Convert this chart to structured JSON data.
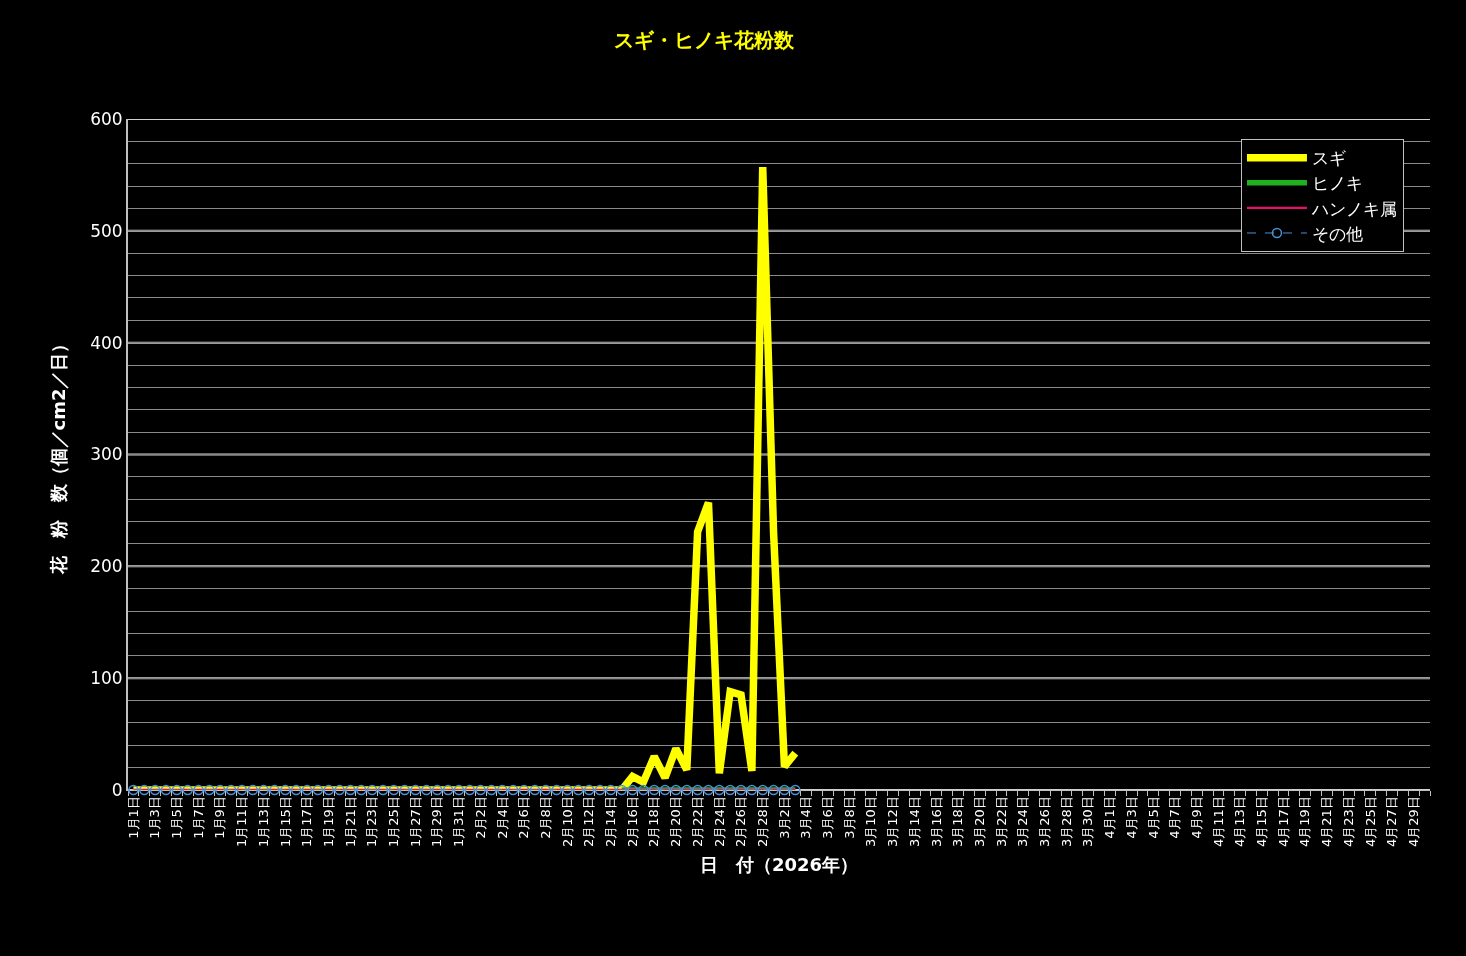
{
  "chart_data": {
    "type": "line",
    "title": "スギ・ヒノキ花粉数",
    "xlabel": "日　付（2026年）",
    "ylabel": "花　粉　数（個／cm2／日）",
    "categories": [
      "1月1日",
      null,
      "1月3日",
      null,
      "1月5日",
      null,
      "1月7日",
      null,
      "1月9日",
      null,
      "1月11日",
      null,
      "1月13日",
      null,
      "1月15日",
      null,
      "1月17日",
      null,
      "1月19日",
      null,
      "1月21日",
      null,
      "1月23日",
      null,
      "1月25日",
      null,
      "1月27日",
      null,
      "1月29日",
      null,
      "1月31日",
      null,
      "2月2日",
      null,
      "2月4日",
      null,
      "2月6日",
      null,
      "2月8日",
      null,
      "2月10日",
      null,
      "2月12日",
      null,
      "2月14日",
      null,
      "2月16日",
      null,
      "2月18日",
      null,
      "2月20日",
      null,
      "2月22日",
      null,
      "2月24日",
      null,
      "2月26日",
      null,
      "2月28日",
      null,
      "3月2日",
      null,
      "3月4日",
      null,
      "3月6日",
      null,
      "3月8日",
      null,
      "3月10日",
      null,
      "3月12日",
      null,
      "3月14日",
      null,
      "3月16日",
      null,
      "3月18日",
      null,
      "3月20日",
      null,
      "3月22日",
      null,
      "3月24日",
      null,
      "3月26日",
      null,
      "3月28日",
      null,
      "3月30日",
      null,
      "4月1日",
      null,
      "4月3日",
      null,
      "4月5日",
      null,
      "4月7日",
      null,
      "4月9日",
      null,
      "4月11日",
      null,
      "4月13日",
      null,
      "4月15日",
      null,
      "4月17日",
      null,
      "4月19日",
      null,
      "4月21日",
      null,
      "4月23日",
      null,
      "4月25日",
      null,
      "4月27日",
      null,
      "4月29日",
      null
    ],
    "series": [
      {
        "name": "スギ",
        "color": "#ffff00",
        "values": [
          0,
          0,
          0,
          0,
          0,
          0,
          0,
          0,
          0,
          0,
          0,
          0,
          0,
          0,
          0,
          0,
          0,
          0,
          0,
          0,
          0,
          0,
          0,
          0,
          0,
          0,
          0,
          0,
          0,
          0,
          0,
          0,
          0,
          0,
          0,
          0,
          0,
          0,
          0,
          0,
          0,
          0,
          0,
          0,
          0,
          0,
          12,
          7,
          30,
          11,
          37,
          18,
          231,
          257,
          15,
          88,
          85,
          17,
          557,
          230,
          21,
          33,
          null,
          null,
          null,
          null,
          null,
          null,
          null,
          null,
          null,
          null,
          null,
          null,
          null,
          null,
          null,
          null,
          null,
          null,
          null,
          null,
          null,
          null,
          null,
          null,
          null,
          null,
          null,
          null,
          null,
          null,
          null,
          null,
          null,
          null,
          null,
          null,
          null,
          null,
          null,
          null,
          null,
          null,
          null,
          null,
          null,
          null,
          null,
          null,
          null,
          null,
          null,
          null,
          null,
          null,
          null,
          null,
          null,
          null
        ]
      },
      {
        "name": "ヒノキ",
        "color": "#20b020",
        "values": [
          null,
          null,
          null,
          null,
          null,
          null,
          null,
          null,
          null,
          null,
          null,
          null,
          null,
          null,
          null,
          null,
          null,
          null,
          null,
          null,
          null,
          null,
          null,
          null,
          null,
          null,
          null,
          null,
          null,
          null,
          null,
          null,
          null,
          null,
          null,
          null,
          null,
          null,
          null,
          null,
          null,
          null,
          null,
          null,
          null,
          0,
          0,
          0,
          0,
          0,
          0,
          0,
          0,
          0,
          0,
          0,
          0,
          0,
          0,
          0,
          0,
          0,
          null,
          null,
          null,
          null,
          null,
          null,
          null,
          null,
          null,
          null,
          null,
          null,
          null,
          null,
          null,
          null,
          null,
          null,
          null,
          null,
          null,
          null,
          null,
          null,
          null,
          null,
          null,
          null,
          null,
          null,
          null,
          null,
          null,
          null,
          null,
          null,
          null,
          null,
          null,
          null,
          null,
          null,
          null,
          null,
          null,
          null,
          null,
          null,
          null,
          null,
          null,
          null,
          null,
          null,
          null,
          null,
          null,
          null
        ]
      },
      {
        "name": "ハンノキ属",
        "color": "#e8106e",
        "values": [
          0,
          0,
          0,
          0,
          0,
          0,
          0,
          0,
          0,
          0,
          0,
          0,
          0,
          0,
          0,
          0,
          0,
          0,
          0,
          0,
          0,
          0,
          0,
          0,
          0,
          0,
          0,
          0,
          0,
          0,
          0,
          0,
          0,
          0,
          0,
          0,
          0,
          0,
          0,
          0,
          0,
          0,
          0,
          0,
          0,
          0,
          0,
          0,
          0,
          0,
          0,
          0,
          0,
          0,
          0,
          0,
          0,
          0,
          0,
          0,
          0,
          0,
          null,
          null,
          null,
          null,
          null,
          null,
          null,
          null,
          null,
          null,
          null,
          null,
          null,
          null,
          null,
          null,
          null,
          null,
          null,
          null,
          null,
          null,
          null,
          null,
          null,
          null,
          null,
          null,
          null,
          null,
          null,
          null,
          null,
          null,
          null,
          null,
          null,
          null,
          null,
          null,
          null,
          null,
          null,
          null,
          null,
          null,
          null,
          null,
          null,
          null,
          null,
          null,
          null,
          null,
          null,
          null,
          null,
          null
        ]
      },
      {
        "name": "その他",
        "color": "#4a90d9",
        "marker": "circle",
        "line_style": "dashed",
        "values": [
          0,
          0,
          0,
          0,
          0,
          0,
          0,
          0,
          0,
          0,
          0,
          0,
          0,
          0,
          0,
          0,
          0,
          0,
          0,
          0,
          0,
          0,
          0,
          0,
          0,
          0,
          0,
          0,
          0,
          0,
          0,
          0,
          0,
          0,
          0,
          0,
          0,
          0,
          0,
          0,
          0,
          0,
          0,
          0,
          0,
          0,
          0,
          0,
          0,
          0,
          0,
          0,
          0,
          0,
          0,
          0,
          0,
          0,
          0,
          0,
          0,
          0,
          null,
          null,
          null,
          null,
          null,
          null,
          null,
          null,
          null,
          null,
          null,
          null,
          null,
          null,
          null,
          null,
          null,
          null,
          null,
          null,
          null,
          null,
          null,
          null,
          null,
          null,
          null,
          null,
          null,
          null,
          null,
          null,
          null,
          null,
          null,
          null,
          null,
          null,
          null,
          null,
          null,
          null,
          null,
          null,
          null,
          null,
          null,
          null,
          null,
          null,
          null,
          null,
          null,
          null,
          null,
          null,
          null,
          null
        ]
      }
    ],
    "ylim": [
      0,
      600
    ],
    "yticks": [
      0,
      {
        "value": 20,
        "label": null
      },
      {
        "value": 40,
        "label": null
      },
      {
        "value": 60,
        "label": null
      },
      {
        "value": 80,
        "label": null
      },
      100,
      {
        "value": 120,
        "label": null
      },
      {
        "value": 140,
        "label": null
      },
      {
        "value": 160,
        "label": null
      },
      {
        "value": 180,
        "label": null
      },
      200,
      {
        "value": 220,
        "label": null
      },
      {
        "value": 240,
        "label": null
      },
      {
        "value": 260,
        "label": null
      },
      {
        "value": 280,
        "label": null
      },
      300,
      {
        "value": 320,
        "label": null
      },
      {
        "value": 340,
        "label": null
      },
      {
        "value": 360,
        "label": null
      },
      {
        "value": 380,
        "label": null
      },
      400,
      {
        "value": 420,
        "label": null
      },
      {
        "value": 440,
        "label": null
      },
      {
        "value": 460,
        "label": null
      },
      {
        "value": 480,
        "label": null
      },
      500,
      {
        "value": 520,
        "label": null
      },
      {
        "value": 540,
        "label": null
      },
      {
        "value": 560,
        "label": null
      },
      {
        "value": 580,
        "label": null
      },
      600
    ],
    "grid": "y",
    "legend": "top right",
    "marker": "none",
    "line_style": "solid"
  }
}
